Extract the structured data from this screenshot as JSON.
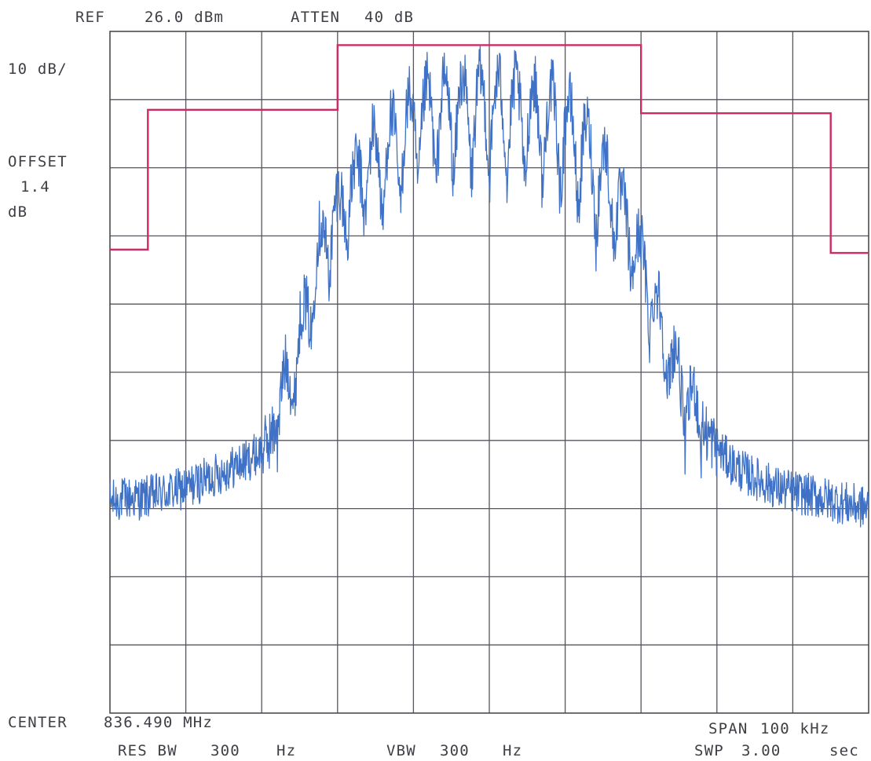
{
  "header": {
    "ref_label": "REF",
    "ref_value": "26.0 dBm",
    "atten_label": "ATTEN",
    "atten_value": "40 dB"
  },
  "left_panel": {
    "scale": "10 dB/",
    "offset_label": "OFFSET",
    "offset_value": "1.4",
    "offset_unit": "dB"
  },
  "footer": {
    "center_label": "CENTER",
    "center_value": "836.490 MHz",
    "span_label": "SPAN",
    "span_value": "100 kHz",
    "res_bw_label": "RES BW",
    "res_bw_value": "300",
    "res_bw_unit": "Hz",
    "vbw_label": "VBW",
    "vbw_value": "300",
    "vbw_unit": "Hz",
    "swp_label": "SWP",
    "swp_value": "3.00",
    "swp_unit": "sec"
  },
  "colors": {
    "trace": "#3f72c6",
    "mask": "#cf2a63",
    "grid": "#56555c",
    "text": "#3e3e44"
  },
  "chart_data": {
    "type": "line",
    "title": "",
    "xlabel": "",
    "ylabel": "",
    "x_unit": "kHz offset from center",
    "y_unit": "dBm",
    "xlim": [
      -50,
      50
    ],
    "ylim": [
      -74,
      26
    ],
    "grid": true,
    "grid_divisions": {
      "x": 10,
      "y": 10
    },
    "series": [
      {
        "points": [
          [
            -50,
            -43
          ],
          [
            -48,
            -42.5
          ],
          [
            -46,
            -42.5
          ],
          [
            -44,
            -42
          ],
          [
            -42,
            -41.5
          ],
          [
            -40,
            -41
          ],
          [
            -38,
            -40
          ],
          [
            -36,
            -39
          ],
          [
            -34,
            -38
          ],
          [
            -32,
            -37
          ],
          [
            -30,
            -35.5
          ],
          [
            -28.5,
            -33
          ],
          [
            -27,
            -27
          ],
          [
            -25.5,
            -22
          ],
          [
            -24,
            -15
          ],
          [
            -22.5,
            -7
          ],
          [
            -21.5,
            -4
          ],
          [
            -20.5,
            -2
          ],
          [
            -19.5,
            0
          ],
          [
            -18.5,
            2
          ],
          [
            -17.5,
            3.5
          ],
          [
            -16.5,
            5
          ],
          [
            -15.5,
            6
          ],
          [
            -14.5,
            6.8
          ],
          [
            -13.5,
            7.5
          ],
          [
            -12.5,
            8.5
          ],
          [
            -11.5,
            10
          ],
          [
            -10.5,
            11
          ],
          [
            -9.5,
            12.5
          ],
          [
            -8,
            13
          ],
          [
            -6,
            13.5
          ],
          [
            -4,
            14
          ],
          [
            -2,
            14
          ],
          [
            0,
            14
          ],
          [
            2,
            14
          ],
          [
            4,
            13.5
          ],
          [
            6,
            13
          ],
          [
            8,
            12.5
          ],
          [
            9.5,
            11.5
          ],
          [
            11,
            10
          ],
          [
            12.5,
            8
          ],
          [
            14,
            5.5
          ],
          [
            15.5,
            3
          ],
          [
            17,
            0
          ],
          [
            18.5,
            -4
          ],
          [
            20,
            -8
          ],
          [
            21.5,
            -13
          ],
          [
            23,
            -19
          ],
          [
            24.5,
            -24
          ],
          [
            26,
            -28
          ],
          [
            28,
            -32
          ],
          [
            30,
            -35
          ],
          [
            32,
            -37.5
          ],
          [
            34,
            -39
          ],
          [
            36,
            -40
          ],
          [
            38,
            -41
          ],
          [
            40,
            -41.5
          ],
          [
            42,
            -42
          ],
          [
            44,
            -42.5
          ],
          [
            46,
            -43
          ],
          [
            48,
            -43.5
          ],
          [
            50,
            -44
          ]
        ]
      },
      {
        "points": [
          [
            -50,
            -6
          ],
          [
            -45,
            -6
          ],
          [
            -45,
            14.5
          ],
          [
            -20,
            14.5
          ],
          [
            -20,
            24
          ],
          [
            20,
            24
          ],
          [
            20,
            14
          ],
          [
            45,
            14
          ],
          [
            45,
            -6.5
          ],
          [
            50,
            -6.5
          ]
        ]
      }
    ]
  }
}
